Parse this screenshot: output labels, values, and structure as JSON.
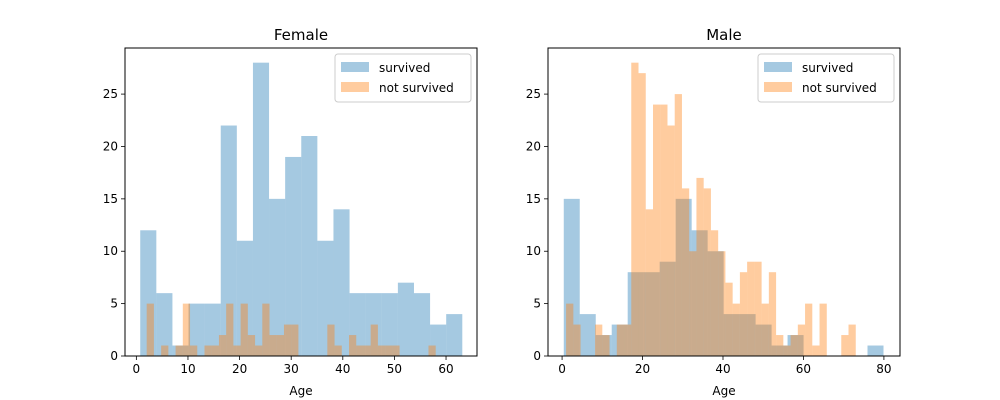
{
  "chart_data": [
    {
      "type": "histogram",
      "title": "Female",
      "xlabel": "Age",
      "ylabel": "",
      "xlim": [
        -2.2,
        66.0
      ],
      "ylim": [
        0,
        29.4
      ],
      "xticks": [
        0,
        10,
        20,
        30,
        40,
        50,
        60
      ],
      "yticks": [
        0,
        5,
        10,
        15,
        20,
        25
      ],
      "legend": "top-right",
      "grid": false,
      "series": [
        {
          "name": "survived",
          "color": "#1f77b4",
          "alpha": 0.4,
          "bins": [
            {
              "x0": 0.75,
              "x1": 3.87,
              "value": 12
            },
            {
              "x0": 3.87,
              "x1": 6.99,
              "value": 6
            },
            {
              "x0": 6.99,
              "x1": 10.11,
              "value": 1
            },
            {
              "x0": 10.11,
              "x1": 13.23,
              "value": 5
            },
            {
              "x0": 13.23,
              "x1": 16.35,
              "value": 5
            },
            {
              "x0": 16.35,
              "x1": 19.47,
              "value": 22
            },
            {
              "x0": 19.47,
              "x1": 22.59,
              "value": 11
            },
            {
              "x0": 22.59,
              "x1": 25.71,
              "value": 28
            },
            {
              "x0": 25.71,
              "x1": 28.83,
              "value": 15
            },
            {
              "x0": 28.83,
              "x1": 31.95,
              "value": 19
            },
            {
              "x0": 31.95,
              "x1": 35.07,
              "value": 21
            },
            {
              "x0": 35.07,
              "x1": 38.19,
              "value": 11
            },
            {
              "x0": 38.19,
              "x1": 41.31,
              "value": 14
            },
            {
              "x0": 41.31,
              "x1": 44.43,
              "value": 6
            },
            {
              "x0": 44.43,
              "x1": 47.55,
              "value": 6
            },
            {
              "x0": 47.55,
              "x1": 50.67,
              "value": 6
            },
            {
              "x0": 50.67,
              "x1": 53.79,
              "value": 7
            },
            {
              "x0": 53.79,
              "x1": 56.91,
              "value": 6
            },
            {
              "x0": 56.91,
              "x1": 60.03,
              "value": 3
            },
            {
              "x0": 60.03,
              "x1": 63.15,
              "value": 4
            }
          ]
        },
        {
          "name": "not survived",
          "color": "#ff7f0e",
          "alpha": 0.4,
          "bins": [
            {
              "x0": 2.0,
              "x1": 3.4,
              "value": 5
            },
            {
              "x0": 3.4,
              "x1": 4.8,
              "value": 0
            },
            {
              "x0": 4.8,
              "x1": 6.2,
              "value": 1
            },
            {
              "x0": 6.2,
              "x1": 7.6,
              "value": 0
            },
            {
              "x0": 7.6,
              "x1": 9.0,
              "value": 1
            },
            {
              "x0": 9.0,
              "x1": 10.4,
              "value": 5
            },
            {
              "x0": 10.4,
              "x1": 11.8,
              "value": 1
            },
            {
              "x0": 11.8,
              "x1": 13.2,
              "value": 0
            },
            {
              "x0": 13.2,
              "x1": 14.6,
              "value": 1
            },
            {
              "x0": 14.6,
              "x1": 16.0,
              "value": 1
            },
            {
              "x0": 16.0,
              "x1": 17.4,
              "value": 2
            },
            {
              "x0": 17.4,
              "x1": 18.8,
              "value": 5
            },
            {
              "x0": 18.8,
              "x1": 20.2,
              "value": 1
            },
            {
              "x0": 20.2,
              "x1": 21.6,
              "value": 5
            },
            {
              "x0": 21.6,
              "x1": 23.0,
              "value": 2
            },
            {
              "x0": 23.0,
              "x1": 24.4,
              "value": 1
            },
            {
              "x0": 24.4,
              "x1": 25.8,
              "value": 5
            },
            {
              "x0": 25.8,
              "x1": 27.2,
              "value": 2
            },
            {
              "x0": 27.2,
              "x1": 28.6,
              "value": 2
            },
            {
              "x0": 28.6,
              "x1": 30.0,
              "value": 3
            },
            {
              "x0": 30.0,
              "x1": 31.4,
              "value": 3
            },
            {
              "x0": 31.4,
              "x1": 32.8,
              "value": 0
            },
            {
              "x0": 32.8,
              "x1": 34.2,
              "value": 0
            },
            {
              "x0": 34.2,
              "x1": 35.6,
              "value": 0
            },
            {
              "x0": 35.6,
              "x1": 37.0,
              "value": 0
            },
            {
              "x0": 37.0,
              "x1": 38.4,
              "value": 3
            },
            {
              "x0": 38.4,
              "x1": 39.8,
              "value": 1
            },
            {
              "x0": 39.8,
              "x1": 41.2,
              "value": 0
            },
            {
              "x0": 41.2,
              "x1": 42.6,
              "value": 2
            },
            {
              "x0": 42.6,
              "x1": 44.0,
              "value": 1
            },
            {
              "x0": 44.0,
              "x1": 45.4,
              "value": 1
            },
            {
              "x0": 45.4,
              "x1": 46.8,
              "value": 3
            },
            {
              "x0": 46.8,
              "x1": 48.2,
              "value": 1
            },
            {
              "x0": 48.2,
              "x1": 49.6,
              "value": 1
            },
            {
              "x0": 49.6,
              "x1": 51.0,
              "value": 1
            },
            {
              "x0": 51.0,
              "x1": 52.4,
              "value": 0
            },
            {
              "x0": 52.4,
              "x1": 53.8,
              "value": 0
            },
            {
              "x0": 53.8,
              "x1": 55.2,
              "value": 0
            },
            {
              "x0": 55.2,
              "x1": 56.6,
              "value": 0
            },
            {
              "x0": 56.6,
              "x1": 58.0,
              "value": 1
            }
          ]
        }
      ]
    },
    {
      "type": "histogram",
      "title": "Male",
      "xlabel": "Age",
      "ylabel": "",
      "xlim": [
        -3.5,
        84.0
      ],
      "ylim": [
        0,
        29.4
      ],
      "xticks": [
        0,
        20,
        40,
        60,
        80
      ],
      "yticks": [
        0,
        5,
        10,
        15,
        20,
        25
      ],
      "legend": "top-right",
      "grid": false,
      "series": [
        {
          "name": "survived",
          "color": "#1f77b4",
          "alpha": 0.4,
          "bins": [
            {
              "x0": 0.42,
              "x1": 4.39,
              "value": 15
            },
            {
              "x0": 4.39,
              "x1": 8.37,
              "value": 4
            },
            {
              "x0": 8.37,
              "x1": 12.34,
              "value": 2
            },
            {
              "x0": 12.34,
              "x1": 16.31,
              "value": 3
            },
            {
              "x0": 16.31,
              "x1": 20.29,
              "value": 8
            },
            {
              "x0": 20.29,
              "x1": 24.26,
              "value": 8
            },
            {
              "x0": 24.26,
              "x1": 28.24,
              "value": 9
            },
            {
              "x0": 28.24,
              "x1": 32.21,
              "value": 15
            },
            {
              "x0": 32.21,
              "x1": 36.18,
              "value": 12
            },
            {
              "x0": 36.18,
              "x1": 40.16,
              "value": 10
            },
            {
              "x0": 40.16,
              "x1": 44.13,
              "value": 4
            },
            {
              "x0": 44.13,
              "x1": 48.11,
              "value": 4
            },
            {
              "x0": 48.11,
              "x1": 52.08,
              "value": 3
            },
            {
              "x0": 52.08,
              "x1": 56.05,
              "value": 1
            },
            {
              "x0": 56.05,
              "x1": 60.03,
              "value": 2
            },
            {
              "x0": 60.03,
              "x1": 64.0,
              "value": 0
            },
            {
              "x0": 64.0,
              "x1": 67.97,
              "value": 0
            },
            {
              "x0": 67.97,
              "x1": 71.95,
              "value": 0
            },
            {
              "x0": 71.95,
              "x1": 75.92,
              "value": 0
            },
            {
              "x0": 75.92,
              "x1": 79.9,
              "value": 1
            }
          ]
        },
        {
          "name": "not survived",
          "color": "#ff7f0e",
          "alpha": 0.4,
          "bins": [
            {
              "x0": 1.0,
              "x1": 2.8,
              "value": 5
            },
            {
              "x0": 2.8,
              "x1": 4.6,
              "value": 3
            },
            {
              "x0": 4.6,
              "x1": 6.4,
              "value": 0
            },
            {
              "x0": 6.4,
              "x1": 8.2,
              "value": 0
            },
            {
              "x0": 8.2,
              "x1": 10.0,
              "value": 3
            },
            {
              "x0": 10.0,
              "x1": 11.8,
              "value": 2
            },
            {
              "x0": 11.8,
              "x1": 13.6,
              "value": 0
            },
            {
              "x0": 13.6,
              "x1": 15.4,
              "value": 3
            },
            {
              "x0": 15.4,
              "x1": 17.2,
              "value": 3
            },
            {
              "x0": 17.2,
              "x1": 19.0,
              "value": 28
            },
            {
              "x0": 19.0,
              "x1": 20.8,
              "value": 27
            },
            {
              "x0": 20.8,
              "x1": 22.6,
              "value": 14
            },
            {
              "x0": 22.6,
              "x1": 24.4,
              "value": 24
            },
            {
              "x0": 24.4,
              "x1": 26.2,
              "value": 24
            },
            {
              "x0": 26.2,
              "x1": 28.0,
              "value": 22
            },
            {
              "x0": 28.0,
              "x1": 29.8,
              "value": 25
            },
            {
              "x0": 29.8,
              "x1": 31.6,
              "value": 16
            },
            {
              "x0": 31.6,
              "x1": 33.4,
              "value": 10
            },
            {
              "x0": 33.4,
              "x1": 35.2,
              "value": 17
            },
            {
              "x0": 35.2,
              "x1": 37.0,
              "value": 16
            },
            {
              "x0": 37.0,
              "x1": 38.8,
              "value": 12
            },
            {
              "x0": 38.8,
              "x1": 40.6,
              "value": 10
            },
            {
              "x0": 40.6,
              "x1": 42.4,
              "value": 7
            },
            {
              "x0": 42.4,
              "x1": 44.2,
              "value": 5
            },
            {
              "x0": 44.2,
              "x1": 46.0,
              "value": 8
            },
            {
              "x0": 46.0,
              "x1": 47.8,
              "value": 9
            },
            {
              "x0": 47.8,
              "x1": 49.6,
              "value": 9
            },
            {
              "x0": 49.6,
              "x1": 51.4,
              "value": 5
            },
            {
              "x0": 51.4,
              "x1": 53.2,
              "value": 8
            },
            {
              "x0": 53.2,
              "x1": 55.0,
              "value": 2
            },
            {
              "x0": 55.0,
              "x1": 56.8,
              "value": 1
            },
            {
              "x0": 56.8,
              "x1": 58.6,
              "value": 2
            },
            {
              "x0": 58.6,
              "x1": 60.4,
              "value": 3
            },
            {
              "x0": 60.4,
              "x1": 62.2,
              "value": 5
            },
            {
              "x0": 62.2,
              "x1": 64.0,
              "value": 1
            },
            {
              "x0": 64.0,
              "x1": 65.8,
              "value": 5
            },
            {
              "x0": 65.8,
              "x1": 67.6,
              "value": 0
            },
            {
              "x0": 67.6,
              "x1": 69.4,
              "value": 0
            },
            {
              "x0": 69.4,
              "x1": 71.2,
              "value": 2
            },
            {
              "x0": 71.2,
              "x1": 73.0,
              "value": 3
            }
          ]
        }
      ]
    }
  ]
}
